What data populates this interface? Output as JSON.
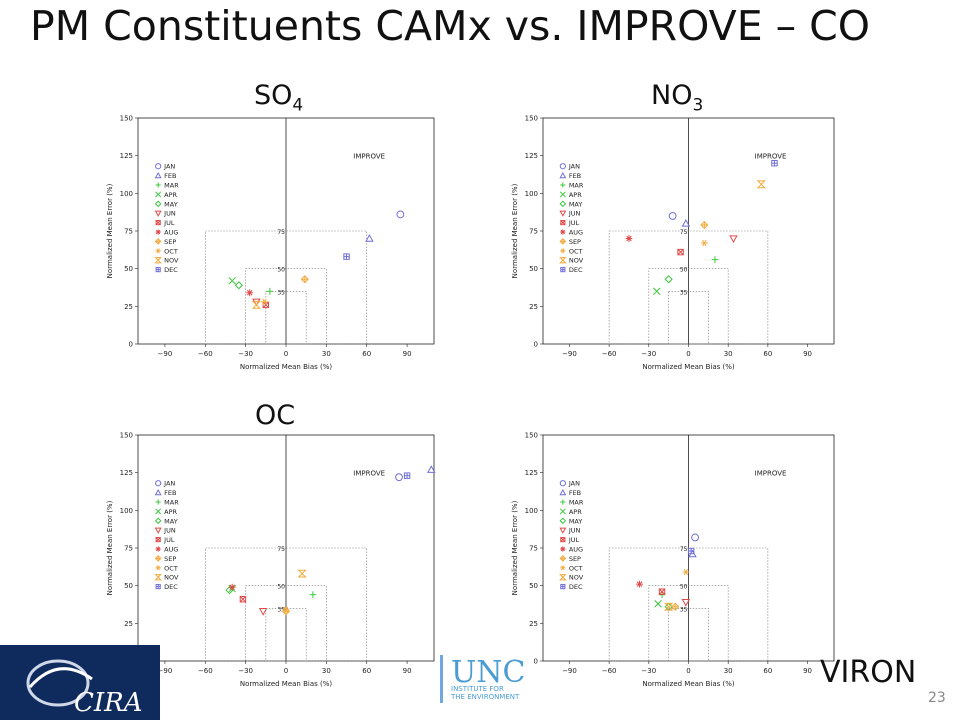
{
  "slide": {
    "title": "PM Constituents CAMx vs. IMPROVE – CO",
    "page_number": "23",
    "footer": {
      "logo_left": "CIRA",
      "logo_mid": "UNC",
      "logo_mid_sub1": "INSTITUTE FOR",
      "logo_mid_sub2": "THE ENVIRONMENT",
      "logo_right_text": "VIRON"
    }
  },
  "panels": [
    {
      "label_main": "SO",
      "label_sub": "4"
    },
    {
      "label_main": "NO",
      "label_sub": "3"
    },
    {
      "label_main": "OC",
      "label_sub": ""
    },
    {
      "label_main": "",
      "label_sub": ""
    }
  ],
  "chart_data": [
    {
      "type": "scatter",
      "title": "SO4",
      "xlabel": "Normalized Mean Bias (%)",
      "ylabel": "Normalized Mean Error (%)",
      "xlim": [
        -110,
        110
      ],
      "ylim": [
        0,
        150
      ],
      "xticks": [
        -90,
        -60,
        -30,
        0,
        30,
        60,
        90
      ],
      "yticks": [
        0,
        25,
        50,
        75,
        100,
        125,
        150
      ],
      "legend_position": "top-left",
      "annotation": "IMPROVE",
      "goal_boxes": [
        {
          "label": "75",
          "bias": 60,
          "error": 75
        },
        {
          "label": "50",
          "bias": 30,
          "error": 50
        },
        {
          "label": "35",
          "bias": 15,
          "error": 35
        }
      ],
      "series": [
        {
          "name": "JAN",
          "x": 85,
          "y": 86
        },
        {
          "name": "FEB",
          "x": 62,
          "y": 70
        },
        {
          "name": "MAR",
          "x": -12,
          "y": 35
        },
        {
          "name": "APR",
          "x": -40,
          "y": 42
        },
        {
          "name": "MAY",
          "x": -35,
          "y": 39
        },
        {
          "name": "JUN",
          "x": -22,
          "y": 28
        },
        {
          "name": "JUL",
          "x": -15,
          "y": 26
        },
        {
          "name": "AUG",
          "x": -27,
          "y": 34
        },
        {
          "name": "SEP",
          "x": 14,
          "y": 43
        },
        {
          "name": "OCT",
          "x": -16,
          "y": 28
        },
        {
          "name": "NOV",
          "x": -22,
          "y": 26
        },
        {
          "name": "DEC",
          "x": 45,
          "y": 58
        }
      ]
    },
    {
      "type": "scatter",
      "title": "NO3",
      "xlabel": "Normalized Mean Bias (%)",
      "ylabel": "Normalized Mean Error (%)",
      "xlim": [
        -110,
        110
      ],
      "ylim": [
        0,
        150
      ],
      "xticks": [
        -90,
        -60,
        -30,
        0,
        30,
        60,
        90
      ],
      "yticks": [
        0,
        25,
        50,
        75,
        100,
        125,
        150
      ],
      "legend_position": "top-left",
      "annotation": "IMPROVE",
      "goal_boxes": [
        {
          "label": "75",
          "bias": 60,
          "error": 75
        },
        {
          "label": "50",
          "bias": 30,
          "error": 50
        },
        {
          "label": "35",
          "bias": 15,
          "error": 35
        }
      ],
      "series": [
        {
          "name": "JAN",
          "x": -12,
          "y": 85
        },
        {
          "name": "FEB",
          "x": -2,
          "y": 80
        },
        {
          "name": "MAR",
          "x": 20,
          "y": 56
        },
        {
          "name": "APR",
          "x": -24,
          "y": 35
        },
        {
          "name": "MAY",
          "x": -15,
          "y": 43
        },
        {
          "name": "JUN",
          "x": 34,
          "y": 70
        },
        {
          "name": "JUL",
          "x": -6,
          "y": 61
        },
        {
          "name": "AUG",
          "x": -45,
          "y": 70
        },
        {
          "name": "SEP",
          "x": 12,
          "y": 79
        },
        {
          "name": "OCT",
          "x": 12,
          "y": 67
        },
        {
          "name": "NOV",
          "x": 55,
          "y": 106
        },
        {
          "name": "DEC",
          "x": 65,
          "y": 120
        }
      ]
    },
    {
      "type": "scatter",
      "title": "OC",
      "xlabel": "Normalized Mean Bias (%)",
      "ylabel": "Normalized Mean Error (%)",
      "xlim": [
        -110,
        110
      ],
      "ylim": [
        0,
        150
      ],
      "xticks": [
        -90,
        -60,
        -30,
        0,
        30,
        60,
        90
      ],
      "yticks": [
        0,
        25,
        50,
        75,
        100,
        125,
        150
      ],
      "legend_position": "top-left",
      "annotation": "IMPROVE",
      "goal_boxes": [
        {
          "label": "75",
          "bias": 60,
          "error": 75
        },
        {
          "label": "50",
          "bias": 30,
          "error": 50
        },
        {
          "label": "35",
          "bias": 15,
          "error": 35
        }
      ],
      "series": [
        {
          "name": "JAN",
          "x": 84,
          "y": 122
        },
        {
          "name": "FEB",
          "x": 108,
          "y": 127
        },
        {
          "name": "MAR",
          "x": 20,
          "y": 44
        },
        {
          "name": "APR",
          "x": -40,
          "y": 48
        },
        {
          "name": "MAY",
          "x": -42,
          "y": 47
        },
        {
          "name": "JUN",
          "x": -17,
          "y": 33
        },
        {
          "name": "JUL",
          "x": -32,
          "y": 41
        },
        {
          "name": "AUG",
          "x": -40,
          "y": 49
        },
        {
          "name": "SEP",
          "x": 0,
          "y": 33
        },
        {
          "name": "OCT",
          "x": 0,
          "y": 34
        },
        {
          "name": "NOV",
          "x": 12,
          "y": 58
        },
        {
          "name": "DEC",
          "x": 90,
          "y": 123
        }
      ]
    },
    {
      "type": "scatter",
      "title": "",
      "xlabel": "Normalized Mean Bias (%)",
      "ylabel": "Normalized Mean Error (%)",
      "xlim": [
        -110,
        110
      ],
      "ylim": [
        0,
        150
      ],
      "xticks": [
        -90,
        -60,
        -30,
        0,
        30,
        60,
        90
      ],
      "yticks": [
        0,
        25,
        50,
        75,
        100,
        125,
        150
      ],
      "legend_position": "top-left",
      "annotation": "IMPROVE",
      "goal_boxes": [
        {
          "label": "75",
          "bias": 60,
          "error": 75
        },
        {
          "label": "50",
          "bias": 30,
          "error": 50
        },
        {
          "label": "35",
          "bias": 15,
          "error": 35
        }
      ],
      "series": [
        {
          "name": "JAN",
          "x": 5,
          "y": 82
        },
        {
          "name": "FEB",
          "x": 3,
          "y": 71
        },
        {
          "name": "MAR",
          "x": -20,
          "y": 44
        },
        {
          "name": "APR",
          "x": -23,
          "y": 38
        },
        {
          "name": "MAY",
          "x": -15,
          "y": 36
        },
        {
          "name": "JUN",
          "x": -2,
          "y": 39
        },
        {
          "name": "JUL",
          "x": -20,
          "y": 46
        },
        {
          "name": "AUG",
          "x": -37,
          "y": 51
        },
        {
          "name": "SEP",
          "x": -10,
          "y": 36
        },
        {
          "name": "OCT",
          "x": -2,
          "y": 59
        },
        {
          "name": "NOV",
          "x": -15,
          "y": 36
        },
        {
          "name": "DEC",
          "x": 2,
          "y": 73
        }
      ]
    }
  ],
  "markers": {
    "JAN": {
      "shape": "circle",
      "color": "#6f6fd8"
    },
    "FEB": {
      "shape": "triangle-up",
      "color": "#6f6fd8"
    },
    "MAR": {
      "shape": "plus",
      "color": "#3cc83c"
    },
    "APR": {
      "shape": "cross",
      "color": "#3cc83c"
    },
    "MAY": {
      "shape": "diamond",
      "color": "#3cc83c"
    },
    "JUN": {
      "shape": "triangle-down",
      "color": "#e04848"
    },
    "JUL": {
      "shape": "box-x",
      "color": "#e04848"
    },
    "AUG": {
      "shape": "asterisk",
      "color": "#e04848"
    },
    "SEP": {
      "shape": "diamond-plus",
      "color": "#f2a93b"
    },
    "OCT": {
      "shape": "star",
      "color": "#f2a93b"
    },
    "NOV": {
      "shape": "hourglass",
      "color": "#f2a93b"
    },
    "DEC": {
      "shape": "box-plus",
      "color": "#6f6fd8"
    }
  }
}
